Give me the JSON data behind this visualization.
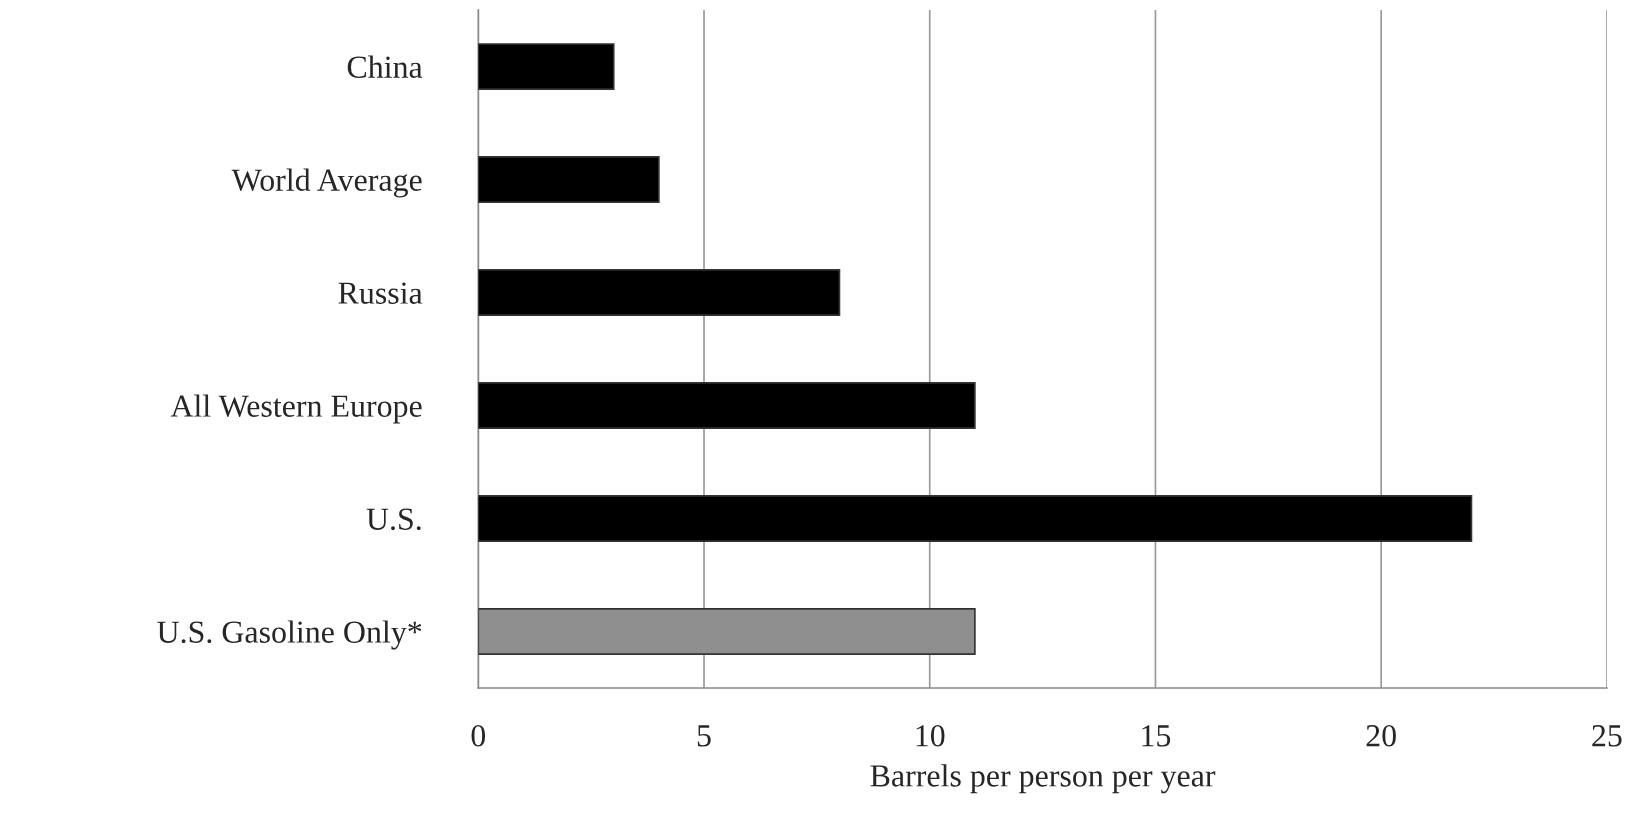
{
  "chart_data": {
    "type": "bar",
    "orientation": "horizontal",
    "xlabel": "Barrels per person per year",
    "categories": [
      "China",
      "World Average",
      "Russia",
      "All Western Europe",
      "U.S.",
      "U.S. Gasoline Only*"
    ],
    "values": [
      3,
      4,
      8,
      11,
      22,
      11
    ],
    "colors": [
      "#000000",
      "#000000",
      "#000000",
      "#000000",
      "#000000",
      "#8f8f8f"
    ],
    "xlim": [
      0,
      25
    ],
    "xticks": [
      0,
      5,
      10,
      15,
      20,
      25
    ],
    "grid": "x",
    "legend": false
  }
}
